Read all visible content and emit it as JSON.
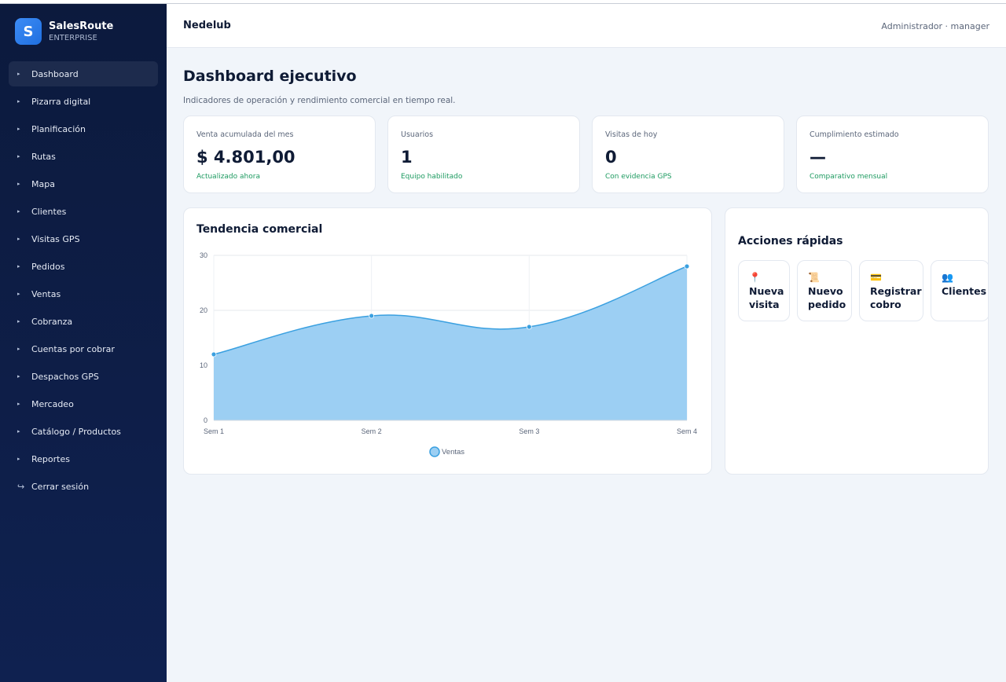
{
  "brand": {
    "logo_letter": "S",
    "name": "SalesRoute",
    "subtitle": "ENTERPRISE"
  },
  "sidebar": {
    "items": [
      {
        "label": "Dashboard",
        "active": true
      },
      {
        "label": "Pizarra digital"
      },
      {
        "label": "Planificación"
      },
      {
        "label": "Rutas"
      },
      {
        "label": "Mapa"
      },
      {
        "label": "Clientes"
      },
      {
        "label": "Visitas GPS"
      },
      {
        "label": "Pedidos"
      },
      {
        "label": "Ventas"
      },
      {
        "label": "Cobranza"
      },
      {
        "label": "Cuentas por cobrar"
      },
      {
        "label": "Despachos GPS"
      },
      {
        "label": "Mercadeo"
      },
      {
        "label": "Catálogo / Productos"
      },
      {
        "label": "Reportes"
      }
    ],
    "logout_label": "Cerrar sesión"
  },
  "header": {
    "title": "Nedelub",
    "user": "Administrador · manager"
  },
  "main": {
    "title": "Dashboard ejecutivo",
    "subtitle": "Indicadores de operación y rendimiento comercial en tiempo real."
  },
  "kpis": [
    {
      "label": "Venta acumulada del mes",
      "value": "$ 4.801,00",
      "note": "Actualizado ahora"
    },
    {
      "label": "Usuarios",
      "value": "1",
      "note": "Equipo habilitado"
    },
    {
      "label": "Visitas de hoy",
      "value": "0",
      "note": "Con evidencia GPS"
    },
    {
      "label": "Cumplimiento estimado",
      "value": "—",
      "note": "Comparativo mensual"
    }
  ],
  "trend": {
    "title": "Tendencia comercial"
  },
  "quick_actions": {
    "title": "Acciones rápidas",
    "items": [
      {
        "icon": "pin-icon",
        "glyph": "📍",
        "label": "Nueva\nvisita"
      },
      {
        "icon": "scroll-icon",
        "glyph": "📜",
        "label": "Nuevo\npedido"
      },
      {
        "icon": "card-icon",
        "glyph": "💳",
        "label": "Registrar\ncobro"
      },
      {
        "icon": "people-icon",
        "glyph": "👥",
        "label": "Clientes"
      }
    ]
  },
  "colors": {
    "accent": "#1f6fe0",
    "area_fill": "#9ccff3",
    "line": "#3aa0e0",
    "positive": "#1e9b61"
  },
  "chart_data": {
    "type": "area",
    "categories": [
      "Sem 1",
      "Sem 2",
      "Sem 3",
      "Sem 4"
    ],
    "series": [
      {
        "name": "Ventas",
        "values": [
          12,
          19,
          17,
          28
        ]
      }
    ],
    "ylim": [
      0,
      30
    ],
    "yticks": [
      0,
      10,
      20,
      30
    ],
    "grid": true,
    "legend": "bottom"
  }
}
